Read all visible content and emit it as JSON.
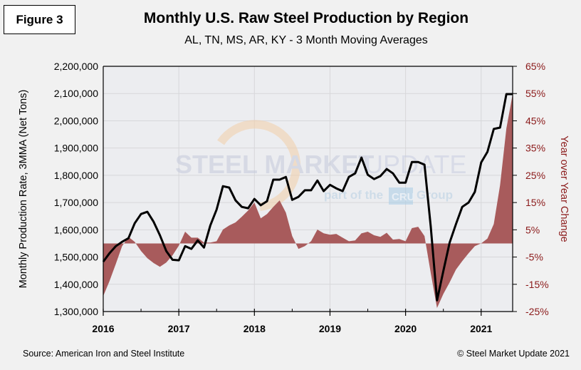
{
  "figure_label": "Figure 3",
  "footer": {
    "source": "Source: American Iron and Steel Institute",
    "copyright": "© Steel Market Update 2021"
  },
  "watermark": {
    "brand_bold": "STEEL MARKET",
    "brand_light": "UPDATE",
    "tagline_pre": "part of the",
    "tagline_box": "CRU",
    "tagline_post": "Group"
  },
  "colors": {
    "line": "#000000",
    "area": "#a85b5c",
    "right_axis": "#8b1a1a",
    "plot_bg": "#ecedf0",
    "grid": "#d7d7da"
  },
  "chart_data": {
    "type": "line",
    "title": "Monthly U.S. Raw Steel Production by Region",
    "subtitle": "AL, TN, MS, AR, KY - 3 Month Moving Averages",
    "xlabel": "",
    "ylabel": "Monthly Production Rate, 3MMA (Net Tons)",
    "y2label": "Year over Year Change",
    "ylim": [
      1300000,
      2200000
    ],
    "y2lim": [
      -25,
      65
    ],
    "yticks": [
      "2,200,000",
      "2,100,000",
      "2,000,000",
      "1,900,000",
      "1,800,000",
      "1,700,000",
      "1,600,000",
      "1,500,000",
      "1,400,000",
      "1,300,000"
    ],
    "y2ticks": [
      "65%",
      "55%",
      "45%",
      "35%",
      "25%",
      "15%",
      "5%",
      "-5%",
      "-15%",
      "-25%"
    ],
    "xticks": [
      "2016",
      "2017",
      "2018",
      "2019",
      "2020",
      "2021"
    ],
    "grid": true,
    "x_start": "2016-01",
    "x_end": "2021-06",
    "x": [
      "2016-01",
      "2016-02",
      "2016-03",
      "2016-04",
      "2016-05",
      "2016-06",
      "2016-07",
      "2016-08",
      "2016-09",
      "2016-10",
      "2016-11",
      "2016-12",
      "2017-01",
      "2017-02",
      "2017-03",
      "2017-04",
      "2017-05",
      "2017-06",
      "2017-07",
      "2017-08",
      "2017-09",
      "2017-10",
      "2017-11",
      "2017-12",
      "2018-01",
      "2018-02",
      "2018-03",
      "2018-04",
      "2018-05",
      "2018-06",
      "2018-07",
      "2018-08",
      "2018-09",
      "2018-10",
      "2018-11",
      "2018-12",
      "2019-01",
      "2019-02",
      "2019-03",
      "2019-04",
      "2019-05",
      "2019-06",
      "2019-07",
      "2019-08",
      "2019-09",
      "2019-10",
      "2019-11",
      "2019-12",
      "2020-01",
      "2020-02",
      "2020-03",
      "2020-04",
      "2020-05",
      "2020-06",
      "2020-07",
      "2020-08",
      "2020-09",
      "2020-10",
      "2020-11",
      "2020-12",
      "2021-01",
      "2021-02",
      "2021-03",
      "2021-04",
      "2021-05",
      "2021-06"
    ],
    "series": [
      {
        "name": "Monthly Production Rate, 3MMA (Net Tons)",
        "type": "line",
        "axis": "left",
        "values": [
          1483000,
          1514000,
          1540000,
          1556000,
          1569000,
          1624000,
          1658000,
          1666000,
          1629000,
          1580000,
          1522000,
          1490000,
          1488000,
          1540000,
          1530000,
          1561000,
          1535000,
          1616000,
          1674000,
          1760000,
          1755000,
          1708000,
          1684000,
          1679000,
          1713000,
          1690000,
          1705000,
          1784000,
          1784000,
          1794000,
          1710000,
          1721000,
          1745000,
          1745000,
          1781000,
          1742000,
          1765000,
          1752000,
          1742000,
          1794000,
          1807000,
          1865000,
          1802000,
          1786000,
          1797000,
          1823000,
          1807000,
          1773000,
          1773000,
          1849000,
          1849000,
          1839000,
          1611000,
          1341000,
          1449000,
          1553000,
          1621000,
          1684000,
          1700000,
          1739000,
          1847000,
          1886000,
          1970000,
          1975000,
          2098000,
          2098000
        ]
      },
      {
        "name": "Year over Year Change",
        "type": "area",
        "axis": "right",
        "unit": "%",
        "values": [
          -19.3,
          -13.8,
          -7.5,
          -1.0,
          2.4,
          0.6,
          -2.8,
          -5.4,
          -7.2,
          -8.6,
          -7.0,
          -4.4,
          -0.8,
          4.3,
          2.1,
          2.1,
          0.3,
          0.3,
          0.8,
          5.1,
          6.6,
          7.7,
          9.8,
          12.1,
          15.0,
          9.2,
          10.8,
          13.4,
          15.8,
          11.3,
          2.7,
          -2.0,
          -1.0,
          0.8,
          5.1,
          3.7,
          3.2,
          3.5,
          2.1,
          0.8,
          1.1,
          3.7,
          4.3,
          3.0,
          2.4,
          3.9,
          1.4,
          1.6,
          0.8,
          5.6,
          6.1,
          2.7,
          -10.9,
          -23.7,
          -18.5,
          -14.3,
          -9.6,
          -6.5,
          -3.6,
          -1.0,
          0.0,
          1.8,
          7.1,
          21.3,
          42.2,
          54.8
        ]
      }
    ],
    "legend": "none"
  }
}
